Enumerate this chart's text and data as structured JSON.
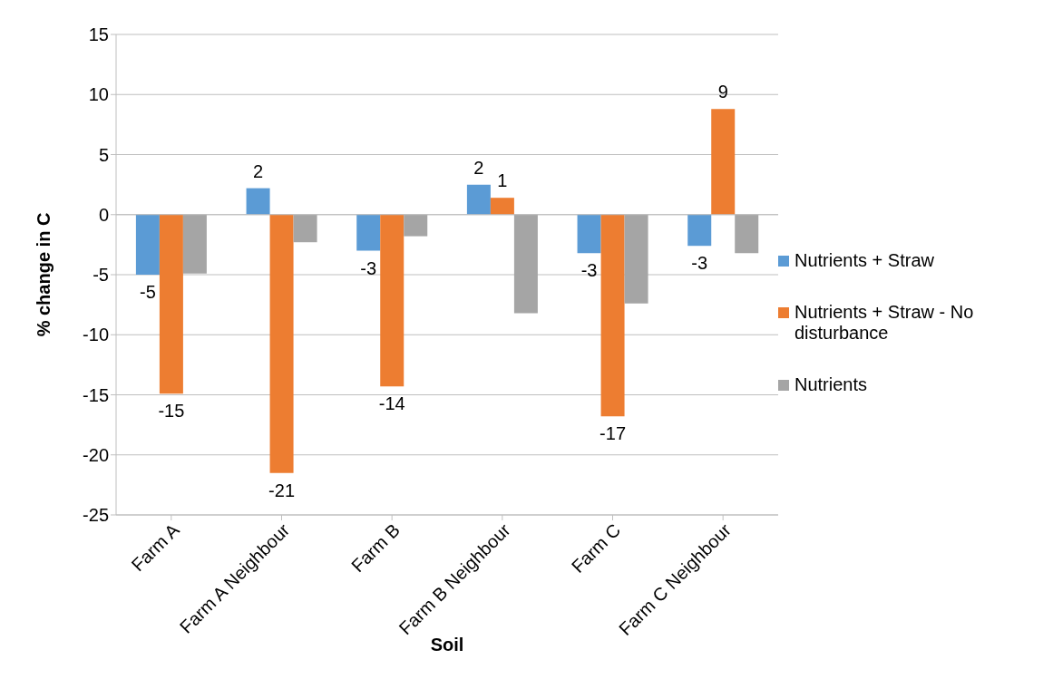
{
  "chart_data": {
    "type": "bar",
    "xlabel": "Soil",
    "ylabel": "% change in C",
    "categories": [
      "Farm A",
      "Farm A Neighbour",
      "Farm B",
      "Farm B Neighbour",
      "Farm C",
      "Farm C Neighbour"
    ],
    "series": [
      {
        "name": "Nutrients + Straw",
        "color": "#5b9bd5",
        "values": [
          -5.0,
          2.2,
          -3.0,
          2.5,
          -3.2,
          -2.6
        ],
        "value_labels": [
          "-5",
          "2",
          "-3",
          "2",
          "-3",
          "-3"
        ]
      },
      {
        "name": "Nutrients + Straw - No disturbance",
        "color": "#ed7d31",
        "values": [
          -14.9,
          -21.5,
          -14.3,
          1.4,
          -16.8,
          8.8
        ],
        "value_labels": [
          "-15",
          "-21",
          "-14",
          "1",
          "-17",
          "9"
        ]
      },
      {
        "name": "Nutrients",
        "color": "#a5a5a5",
        "values": [
          -4.9,
          -2.3,
          -1.8,
          -8.2,
          -7.4,
          -3.2
        ]
      }
    ],
    "ylim": [
      -25,
      15
    ],
    "yticks": [
      -25,
      -20,
      -15,
      -10,
      -5,
      0,
      5,
      10,
      15
    ],
    "grid": "y",
    "legend": "right"
  }
}
